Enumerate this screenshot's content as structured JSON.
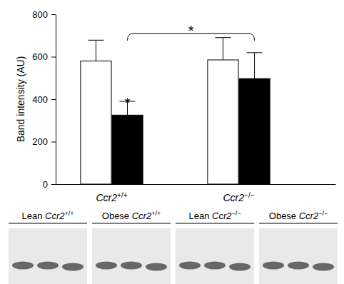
{
  "chart_data": {
    "type": "bar",
    "y_label": "Band intensity (AU)",
    "categories": [
      "Ccr2+/+",
      "Ccr2−/−"
    ],
    "series": [
      {
        "color": "#ffffff",
        "values": [
          580,
          585
        ],
        "errors": [
          98,
          105
        ]
      },
      {
        "color": "#000000",
        "values": [
          325,
          497
        ],
        "errors": [
          65,
          122
        ]
      }
    ],
    "ylim": [
      0,
      800
    ],
    "yticks": [
      0,
      200,
      400,
      600,
      800
    ],
    "grid": false,
    "significance": [
      {
        "label": "*",
        "series": 1,
        "category": 0
      },
      {
        "label": "*",
        "series": 1,
        "from_category": 0,
        "to_category": 1
      }
    ]
  },
  "blot_labels": [
    "Lean Ccr2+/+",
    "Obese Ccr2+/+",
    "Lean Ccr2−/−",
    "Obese Ccr2−/−"
  ]
}
